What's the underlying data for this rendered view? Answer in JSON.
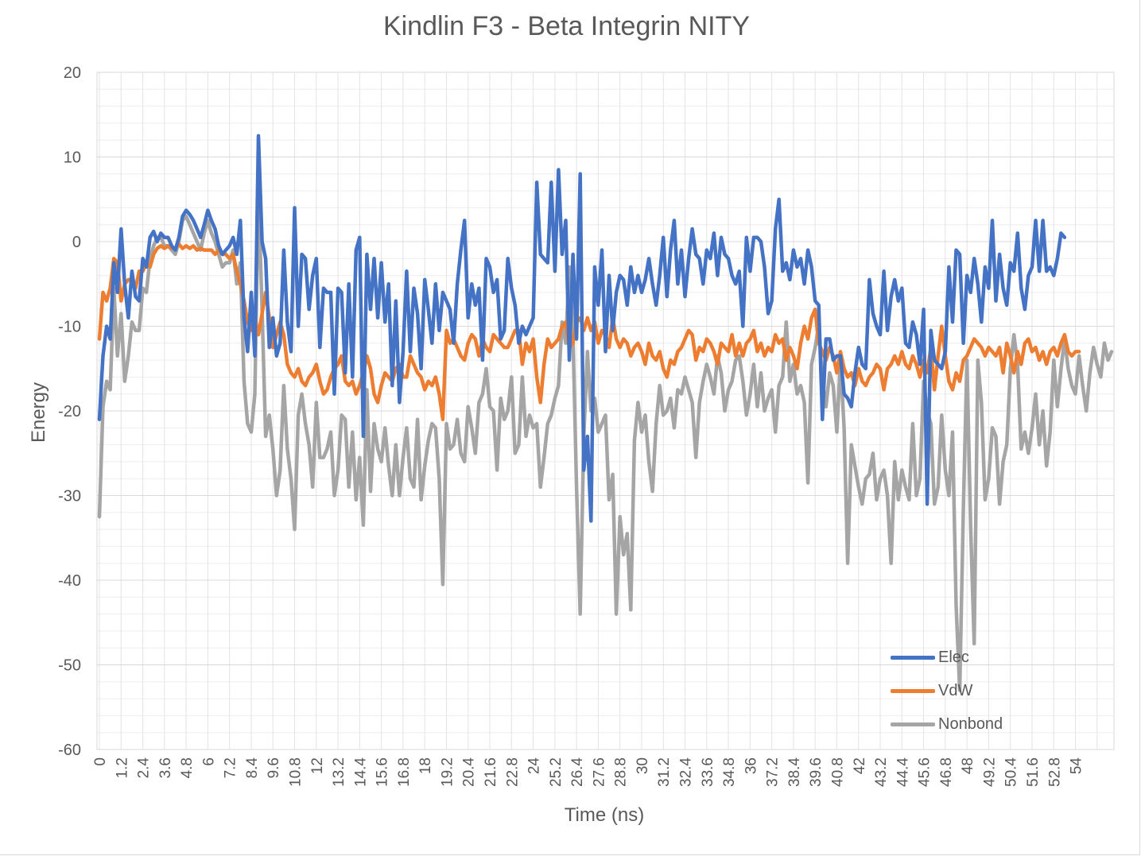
{
  "chart_data": {
    "type": "line",
    "title": "Kindlin F3 - Beta Integrin NITY",
    "xlabel": "Time (ns)",
    "ylabel": "Energy",
    "ylim": [
      -60,
      20
    ],
    "y_ticks": [
      "20",
      "10",
      "0",
      "-10",
      "-20",
      "-30",
      "-40",
      "-50",
      "-60"
    ],
    "x_tick_labels": [
      "0",
      "1.2",
      "2.4",
      "3.6",
      "4.8",
      "6",
      "7.2",
      "8.4",
      "9.6",
      "10.8",
      "12",
      "13.2",
      "14.4",
      "15.6",
      "16.8",
      "18",
      "19.2",
      "20.4",
      "21.6",
      "22.8",
      "24",
      "25.2",
      "26.4",
      "27.6",
      "28.8",
      "30",
      "31.2",
      "32.4",
      "33.6",
      "34.8",
      "36",
      "37.2",
      "38.4",
      "39.6",
      "40.8",
      "42",
      "43.2",
      "44.4",
      "45.6",
      "46.8",
      "48",
      "49.2",
      "50.4",
      "51.6",
      "52.8",
      "54"
    ],
    "x_step_ns": 0.2,
    "legend_position": "bottom-right",
    "grid": true,
    "series": [
      {
        "name": "Elec",
        "color": "#4472C4",
        "values": [
          -21.0,
          -13.5,
          -10.0,
          -11.5,
          -2.5,
          -6.0,
          1.5,
          -5.0,
          -9.0,
          -3.5,
          -6.5,
          -7.0,
          -2.0,
          -3.0,
          0.5,
          1.2,
          0.0,
          1.0,
          0.5,
          0.5,
          -0.5,
          -1.0,
          0.5,
          3.0,
          3.7,
          3.2,
          2.5,
          1.5,
          0.5,
          2.0,
          3.7,
          2.5,
          1.5,
          -0.5,
          -1.5,
          -1.0,
          -0.5,
          0.5,
          -1.5,
          2.5,
          -9.0,
          -13.0,
          -6.0,
          -13.5,
          12.5,
          0.0,
          -2.0,
          -12.5,
          -9.0,
          -13.5,
          -12.0,
          -1.0,
          -9.5,
          -13.0,
          4.0,
          -10.0,
          -1.5,
          -2.0,
          -8.0,
          -4.0,
          -2.0,
          -12.5,
          -5.5,
          -6.0,
          -6.0,
          -18.0,
          -5.5,
          -6.0,
          -15.5,
          -5.0,
          -16.0,
          -1.0,
          0.5,
          -23.0,
          -1.5,
          -8.0,
          -2.0,
          -9.0,
          -2.5,
          -9.5,
          -5.0,
          -17.0,
          -7.0,
          -19.0,
          -13.0,
          -3.5,
          -13.0,
          -5.5,
          -8.5,
          -15.0,
          -4.5,
          -8.0,
          -12.0,
          -5.0,
          -10.5,
          -6.0,
          -7.0,
          -8.0,
          -12.0,
          -5.0,
          -1.0,
          2.5,
          -9.0,
          -5.0,
          -7.5,
          -5.5,
          -14.0,
          -2.0,
          -3.0,
          -6.0,
          -4.5,
          -11.5,
          -10.5,
          -2.0,
          -5.5,
          -7.5,
          -12.0,
          -10.0,
          -11.0,
          -10.0,
          -9.0,
          7.0,
          -1.5,
          -2.0,
          -2.5,
          7.0,
          -3.5,
          8.5,
          -1.5,
          2.5,
          -14.0,
          -1.5,
          -11.5,
          8.0,
          -27.0,
          -23.0,
          -33.0,
          -3.0,
          -7.5,
          -1.0,
          -13.0,
          -4.0,
          -10.5,
          -6.0,
          -4.0,
          -4.5,
          -7.5,
          -3.0,
          -6.0,
          -4.0,
          -6.0,
          -4.5,
          -2.0,
          -5.0,
          -7.5,
          -4.0,
          0.5,
          -6.5,
          -1.0,
          2.5,
          -5.0,
          -1.0,
          -6.5,
          -2.0,
          1.5,
          -1.5,
          -2.0,
          -5.0,
          -1.0,
          -2.0,
          1.0,
          -4.0,
          0.5,
          -1.5,
          -2.0,
          -4.0,
          -5.0,
          -3.5,
          -10.0,
          0.5,
          -3.5,
          0.5,
          0.5,
          0.0,
          -3.0,
          -8.5,
          -7.0,
          1.5,
          5.0,
          -3.5,
          -2.5,
          -4.5,
          -1.0,
          -3.0,
          -2.0,
          -5.0,
          -1.0,
          -3.0,
          -7.0,
          -7.5,
          -21.0,
          -11.5,
          -11.5,
          -14.0,
          -13.5,
          -13.5,
          -18.0,
          -18.5,
          -19.5,
          -15.5,
          -12.5,
          -14.5,
          -15.0,
          -4.5,
          -8.5,
          -10.0,
          -11.0,
          -3.5,
          -10.5,
          -6.5,
          -4.5,
          -7.0,
          -5.5,
          -12.0,
          -12.5,
          -9.5,
          -11.0,
          -14.5,
          -8.0,
          -31.0,
          -10.5,
          -14.0,
          -14.5,
          -15.0,
          -13.0,
          -3.0,
          -9.5,
          -1.0,
          -1.5,
          -12.0,
          -4.0,
          -6.0,
          -2.0,
          -5.0,
          -9.5,
          -3.0,
          -5.5,
          2.5,
          -7.0,
          -1.5,
          -5.5,
          -7.5,
          -2.5,
          -3.5,
          1.0,
          -5.5,
          -8.0,
          -4.0,
          -3.0,
          2.5,
          -3.5,
          2.5,
          -3.5,
          -3.0,
          -4.0,
          -2.0,
          1.0,
          0.5
        ]
      },
      {
        "name": "VdW",
        "color": "#ED7D31",
        "values": [
          -11.5,
          -6.0,
          -7.0,
          -5.5,
          -2.0,
          -2.5,
          -7.0,
          -5.0,
          -4.5,
          -4.5,
          -5.5,
          -3.5,
          -3.5,
          -2.5,
          -3.0,
          -1.5,
          -0.8,
          -0.5,
          -0.8,
          -0.5,
          -0.8,
          -0.8,
          -0.3,
          -0.8,
          -0.5,
          -0.8,
          -0.5,
          -1.0,
          -0.8,
          -1.0,
          -1.0,
          -1.0,
          -1.5,
          -1.0,
          -1.5,
          -1.5,
          -2.0,
          -1.5,
          -3.5,
          -5.0,
          -7.0,
          -9.5,
          -10.5,
          -9.0,
          -11.0,
          -8.5,
          -6.0,
          -9.0,
          -12.5,
          -11.0,
          -9.5,
          -11.0,
          -14.5,
          -15.5,
          -16.0,
          -15.0,
          -16.5,
          -17.0,
          -16.0,
          -15.5,
          -14.5,
          -16.5,
          -18.0,
          -17.5,
          -16.0,
          -15.0,
          -14.5,
          -13.5,
          -16.5,
          -17.0,
          -16.5,
          -18.0,
          -17.0,
          -15.5,
          -13.5,
          -15.0,
          -18.0,
          -19.0,
          -17.0,
          -15.5,
          -16.0,
          -16.5,
          -15.0,
          -14.5,
          -16.0,
          -16.0,
          -13.5,
          -14.5,
          -15.5,
          -16.0,
          -17.5,
          -16.5,
          -17.0,
          -16.0,
          -18.0,
          -21.0,
          -10.5,
          -12.0,
          -11.5,
          -12.5,
          -13.5,
          -14.0,
          -12.0,
          -11.0,
          -11.5,
          -13.5,
          -11.5,
          -12.5,
          -13.0,
          -11.0,
          -11.5,
          -12.0,
          -12.5,
          -12.5,
          -11.5,
          -10.5,
          -10.5,
          -14.5,
          -12.0,
          -13.0,
          -11.5,
          -16.0,
          -19.0,
          -14.5,
          -11.5,
          -12.5,
          -12.0,
          -11.5,
          -10.0,
          -9.5,
          -12.5,
          -12.0,
          -9.5,
          -9.0,
          -10.5,
          -9.0,
          -10.5,
          -9.5,
          -12.0,
          -10.5,
          -11.0,
          -12.5,
          -9.0,
          -11.5,
          -12.5,
          -11.5,
          -12.0,
          -13.5,
          -12.5,
          -12.0,
          -13.0,
          -14.5,
          -12.0,
          -13.5,
          -14.0,
          -13.0,
          -15.0,
          -16.0,
          -14.0,
          -14.5,
          -13.0,
          -12.5,
          -11.5,
          -10.5,
          -11.0,
          -14.0,
          -12.5,
          -13.0,
          -11.5,
          -12.0,
          -13.0,
          -14.5,
          -12.0,
          -12.5,
          -13.0,
          -11.0,
          -13.5,
          -12.0,
          -13.5,
          -12.0,
          -11.5,
          -10.5,
          -13.0,
          -12.0,
          -13.5,
          -12.5,
          -13.0,
          -11.0,
          -12.0,
          -11.5,
          -14.0,
          -12.5,
          -13.5,
          -15.0,
          -12.0,
          -10.0,
          -11.5,
          -9.0,
          -8.0,
          -12.0,
          -13.0,
          -14.0,
          -12.5,
          -13.5,
          -15.5,
          -13.0,
          -15.0,
          -16.0,
          -15.5,
          -17.0,
          -15.0,
          -16.5,
          -17.0,
          -16.0,
          -15.5,
          -14.5,
          -15.0,
          -17.5,
          -15.0,
          -14.5,
          -13.5,
          -14.5,
          -13.0,
          -14.5,
          -15.0,
          -13.5,
          -14.5,
          -16.0,
          -14.0,
          -15.5,
          -12.5,
          -17.5,
          -13.5,
          -10.0,
          -13.5,
          -16.5,
          -17.5,
          -15.5,
          -16.5,
          -14.0,
          -13.5,
          -12.5,
          -11.5,
          -12.0,
          -12.5,
          -13.5,
          -12.5,
          -13.0,
          -13.5,
          -12.5,
          -15.5,
          -12.0,
          -13.5,
          -15.5,
          -13.0,
          -14.5,
          -12.0,
          -11.5,
          -13.0,
          -12.5,
          -14.0,
          -13.0,
          -14.5,
          -13.0,
          -12.5,
          -13.5,
          -12.0,
          -11.0,
          -13.0,
          -13.5,
          -13.0,
          -13.0
        ]
      },
      {
        "name": "Nonbond",
        "color": "#A5A5A5",
        "values": [
          -32.5,
          -19.5,
          -16.5,
          -17.5,
          -5.5,
          -13.5,
          -8.5,
          -16.5,
          -13.5,
          -9.5,
          -10.5,
          -10.5,
          -5.5,
          -6.0,
          -2.0,
          -0.5,
          0.5,
          0.5,
          -0.5,
          -0.5,
          -1.0,
          -1.5,
          0.0,
          2.5,
          3.0,
          2.0,
          1.0,
          0.0,
          -1.0,
          1.0,
          2.5,
          1.0,
          0.0,
          -1.5,
          -3.0,
          -2.5,
          -2.5,
          -1.0,
          -5.0,
          -2.5,
          -16.5,
          -21.5,
          -22.5,
          -18.0,
          5.8,
          -8.0,
          -23.0,
          -20.5,
          -24.5,
          -30.0,
          -27.0,
          -17.0,
          -24.5,
          -28.0,
          -34.0,
          -20.5,
          -18.0,
          -21.5,
          -24.0,
          -29.0,
          -19.0,
          -25.5,
          -25.5,
          -24.5,
          -22.5,
          -30.0,
          -27.0,
          -20.5,
          -21.0,
          -29.0,
          -22.5,
          -30.5,
          -25.5,
          -33.5,
          -17.5,
          -29.5,
          -21.5,
          -24.5,
          -26.0,
          -22.0,
          -26.5,
          -30.0,
          -24.0,
          -30.0,
          -25.5,
          -22.0,
          -28.0,
          -29.0,
          -21.0,
          -30.5,
          -26.5,
          -23.5,
          -21.5,
          -22.0,
          -28.0,
          -40.5,
          -21.5,
          -24.5,
          -24.0,
          -21.0,
          -25.0,
          -26.0,
          -19.5,
          -22.0,
          -25.0,
          -19.0,
          -18.0,
          -15.0,
          -19.5,
          -20.0,
          -27.0,
          -18.5,
          -21.0,
          -20.0,
          -16.0,
          -25.0,
          -24.0,
          -16.0,
          -23.0,
          -20.5,
          -22.0,
          -21.5,
          -29.0,
          -25.5,
          -21.5,
          -20.5,
          -18.5,
          -17.0,
          -9.5,
          -12.0,
          -3.0,
          -11.0,
          -29.0,
          -44.0,
          -23.0,
          -13.0,
          -20.0,
          -18.5,
          -22.5,
          -21.5,
          -20.5,
          -30.5,
          -27.5,
          -44.0,
          -32.5,
          -37.0,
          -34.5,
          -43.5,
          -23.5,
          -19.0,
          -22.5,
          -20.5,
          -26.0,
          -29.5,
          -21.5,
          -17.0,
          -20.5,
          -20.0,
          -18.5,
          -22.0,
          -17.5,
          -18.0,
          -16.0,
          -17.5,
          -19.0,
          -25.5,
          -19.0,
          -16.5,
          -14.5,
          -16.0,
          -18.0,
          -13.5,
          -15.5,
          -20.0,
          -17.5,
          -16.5,
          -14.0,
          -13.5,
          -16.5,
          -20.5,
          -18.0,
          -14.5,
          -19.5,
          -15.5,
          -20.0,
          -18.5,
          -17.5,
          -22.5,
          -17.0,
          -16.0,
          -9.5,
          -16.5,
          -14.5,
          -18.0,
          -17.0,
          -19.0,
          -28.5,
          -14.5,
          -12.5,
          -10.0,
          -16.5,
          -19.5,
          -15.5,
          -17.0,
          -22.5,
          -14.0,
          -22.0,
          -38.0,
          -24.0,
          -26.5,
          -29.0,
          -31.0,
          -28.0,
          -27.5,
          -25.0,
          -30.5,
          -28.0,
          -27.0,
          -30.0,
          -38.0,
          -26.0,
          -30.5,
          -27.0,
          -29.0,
          -30.5,
          -21.5,
          -30.0,
          -28.0,
          -16.5,
          -20.0,
          -21.5,
          -31.0,
          -29.0,
          -20.5,
          -27.0,
          -30.0,
          -22.5,
          -43.0,
          -53.0,
          -31.5,
          -14.0,
          -33.5,
          -47.5,
          -14.0,
          -19.0,
          -30.5,
          -28.0,
          -22.0,
          -23.0,
          -31.0,
          -26.0,
          -24.0,
          -15.0,
          -11.0,
          -14.5,
          -24.5,
          -22.5,
          -25.0,
          -22.0,
          -18.0,
          -24.0,
          -20.0,
          -26.5,
          -22.5,
          -14.0,
          -19.5,
          -15.0,
          -11.5,
          -15.0,
          -17.0,
          -18.0,
          -13.5,
          -17.0,
          -20.0,
          -15.5,
          -12.5,
          -14.5,
          -16.0,
          -12.0,
          -14.0,
          -13.0
        ]
      }
    ]
  }
}
